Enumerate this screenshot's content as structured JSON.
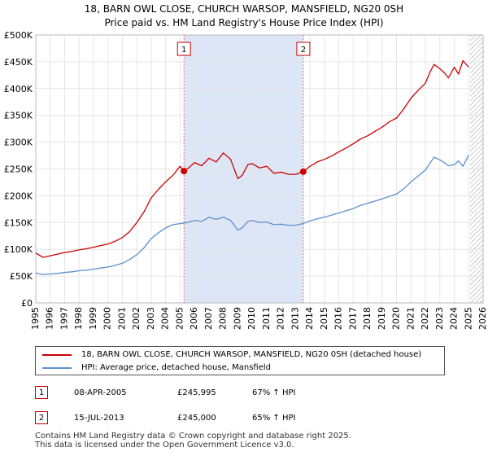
{
  "header": {
    "title_line1": "18, BARN OWL CLOSE, CHURCH WARSOP, MANSFIELD, NG20 0SH",
    "title_line2": "Price paid vs. HM Land Registry's House Price Index (HPI)"
  },
  "colors": {
    "property": "#cc0000",
    "hpi": "#5b8fd0",
    "shade": "#dde6f6",
    "grid": "#e6e6e6",
    "hatch": "#9a9a9a"
  },
  "chart_data": {
    "type": "line",
    "xlim": [
      1995,
      2026
    ],
    "ylim": [
      0,
      500000
    ],
    "x_ticks": [
      "1995",
      "1996",
      "1997",
      "1998",
      "1999",
      "2000",
      "2001",
      "2002",
      "2003",
      "2004",
      "2005",
      "2006",
      "2007",
      "2008",
      "2009",
      "2010",
      "2011",
      "2012",
      "2013",
      "2014",
      "2015",
      "2016",
      "2017",
      "2018",
      "2019",
      "2020",
      "2021",
      "2022",
      "2023",
      "2024",
      "2025",
      "2026"
    ],
    "y_ticks": [
      {
        "value": 0,
        "label": "£0"
      },
      {
        "value": 50000,
        "label": "£50K"
      },
      {
        "value": 100000,
        "label": "£100K"
      },
      {
        "value": 150000,
        "label": "£150K"
      },
      {
        "value": 200000,
        "label": "£200K"
      },
      {
        "value": 250000,
        "label": "£250K"
      },
      {
        "value": 300000,
        "label": "£300K"
      },
      {
        "value": 350000,
        "label": "£350K"
      },
      {
        "value": 400000,
        "label": "£400K"
      },
      {
        "value": 450000,
        "label": "£450K"
      },
      {
        "value": 500000,
        "label": "£500K"
      }
    ],
    "shaded_period": [
      2005.27,
      2013.54
    ],
    "hatched_from": 2025.1,
    "series": [
      {
        "name": "18, BARN OWL CLOSE, CHURCH WARSOP, MANSFIELD, NG20 0SH (detached house)",
        "x": [
          1995.0,
          1995.5,
          1996.0,
          1996.5,
          1997.0,
          1997.5,
          1998.0,
          1998.5,
          1999.0,
          1999.5,
          2000.0,
          2000.5,
          2001.0,
          2001.5,
          2002.0,
          2002.5,
          2003.0,
          2003.5,
          2004.0,
          2004.5,
          2005.0,
          2005.27,
          2005.6,
          2006.0,
          2006.5,
          2007.0,
          2007.5,
          2008.0,
          2008.5,
          2009.0,
          2009.3,
          2009.7,
          2010.0,
          2010.5,
          2011.0,
          2011.5,
          2012.0,
          2012.5,
          2013.0,
          2013.54,
          2014.0,
          2014.5,
          2015.0,
          2015.5,
          2016.0,
          2016.5,
          2017.0,
          2017.5,
          2018.0,
          2018.5,
          2019.0,
          2019.5,
          2020.0,
          2020.5,
          2021.0,
          2021.5,
          2022.0,
          2022.3,
          2022.6,
          2023.0,
          2023.3,
          2023.6,
          2024.0,
          2024.3,
          2024.6,
          2025.0
        ],
        "y": [
          93000,
          85000,
          88000,
          91000,
          94000,
          96000,
          99000,
          101000,
          104000,
          107000,
          110000,
          115000,
          122000,
          133000,
          150000,
          170000,
          196000,
          212000,
          226000,
          238000,
          255000,
          245995,
          252000,
          262000,
          256000,
          270000,
          263000,
          280000,
          268000,
          232000,
          238000,
          258000,
          260000,
          252000,
          255000,
          242000,
          244000,
          240000,
          240000,
          245000,
          255000,
          263000,
          268000,
          274000,
          282000,
          289000,
          297000,
          306000,
          312000,
          320000,
          328000,
          338000,
          345000,
          362000,
          382000,
          397000,
          410000,
          430000,
          445000,
          437000,
          430000,
          420000,
          440000,
          427000,
          452000,
          440000
        ]
      },
      {
        "name": "HPI: Average price, detached house, Mansfield",
        "x": [
          1995.0,
          1995.5,
          1996.0,
          1996.5,
          1997.0,
          1997.5,
          1998.0,
          1998.5,
          1999.0,
          1999.5,
          2000.0,
          2000.5,
          2001.0,
          2001.5,
          2002.0,
          2002.5,
          2003.0,
          2003.5,
          2004.0,
          2004.5,
          2005.0,
          2005.5,
          2006.0,
          2006.5,
          2007.0,
          2007.5,
          2008.0,
          2008.5,
          2009.0,
          2009.3,
          2009.7,
          2010.0,
          2010.5,
          2011.0,
          2011.5,
          2012.0,
          2012.5,
          2013.0,
          2013.5,
          2014.0,
          2014.5,
          2015.0,
          2015.5,
          2016.0,
          2016.5,
          2017.0,
          2017.5,
          2018.0,
          2018.5,
          2019.0,
          2019.5,
          2020.0,
          2020.5,
          2021.0,
          2021.5,
          2022.0,
          2022.3,
          2022.6,
          2023.0,
          2023.3,
          2023.6,
          2024.0,
          2024.3,
          2024.6,
          2025.0
        ],
        "y": [
          56000,
          53000,
          54000,
          55000,
          57000,
          58000,
          60000,
          61000,
          63000,
          65000,
          67000,
          70000,
          74000,
          81000,
          90000,
          103000,
          120000,
          131000,
          140000,
          146000,
          148000,
          150000,
          154000,
          152000,
          160000,
          156000,
          160000,
          154000,
          136000,
          140000,
          152000,
          154000,
          150000,
          151000,
          146000,
          147000,
          145000,
          145000,
          148000,
          153000,
          157000,
          160000,
          164000,
          168000,
          172000,
          176000,
          182000,
          186000,
          190000,
          194000,
          199000,
          203000,
          213000,
          226000,
          237000,
          248000,
          260000,
          272000,
          267000,
          262000,
          256000,
          258000,
          265000,
          255000,
          276000
        ]
      }
    ],
    "markers": [
      {
        "label": "1",
        "x": 2005.27,
        "y": 245995
      },
      {
        "label": "2",
        "x": 2013.54,
        "y": 245000
      }
    ]
  },
  "legend": {
    "property_label": "18, BARN OWL CLOSE, CHURCH WARSOP, MANSFIELD, NG20 0SH (detached house)",
    "hpi_label": "HPI: Average price, detached house, Mansfield"
  },
  "sales": [
    {
      "num": "1",
      "date": "08-APR-2005",
      "price": "£245,995",
      "hpi": "67% ↑ HPI"
    },
    {
      "num": "2",
      "date": "15-JUL-2013",
      "price": "£245,000",
      "hpi": "65% ↑ HPI"
    }
  ],
  "footer": {
    "line1": "Contains HM Land Registry data © Crown copyright and database right 2025.",
    "line2": "This data is licensed under the Open Government Licence v3.0."
  }
}
